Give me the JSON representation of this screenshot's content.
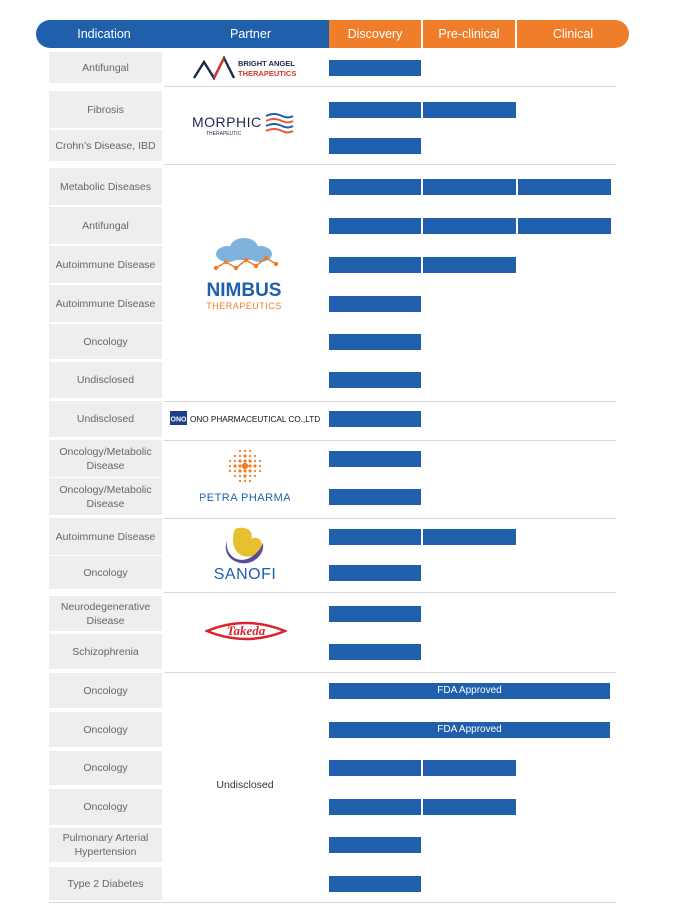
{
  "header": {
    "indication": "Indication",
    "partner": "Partner",
    "discovery": "Discovery",
    "preclinical": "Pre-clinical",
    "clinical": "Clinical"
  },
  "partners": {
    "bright_angel": {
      "line1": "BRIGHT ANGEL",
      "line2": "THERAPEUTICS"
    },
    "morphic": {
      "name": "MORPHIC",
      "sub": "THERAPEUTIC"
    },
    "nimbus": {
      "name": "NIMBUS",
      "sub": "THERAPEUTICS"
    },
    "ono": {
      "mark": "ONO",
      "name": "ONO PHARMACEUTICAL CO.,LTD."
    },
    "petra": {
      "name": "PETRA PHARMA"
    },
    "sanofi": {
      "name": "SANOFI"
    },
    "takeda": {
      "name": "Takeda"
    },
    "undisclosed": {
      "name": "Undisclosed"
    }
  },
  "colors": {
    "header_blue": "#1f5fac",
    "header_orange": "#ef7d2a",
    "bar": "#1f5fac",
    "indication_bg": "#eceef0"
  },
  "chart_data": {
    "type": "table",
    "phases": [
      "Discovery",
      "Pre-clinical",
      "Clinical"
    ],
    "rows": [
      {
        "indication": "Antifungal",
        "stage": 1
      },
      {
        "indication": "Fibrosis",
        "stage": 2
      },
      {
        "indication": "Crohn’s Disease, IBD",
        "stage": 1
      },
      {
        "indication": "Metabolic Diseases",
        "stage": 3
      },
      {
        "indication": "Antifungal",
        "stage": 3
      },
      {
        "indication": "Autoimmune Disease",
        "stage": 2
      },
      {
        "indication": "Autoimmune Disease",
        "stage": 1
      },
      {
        "indication": "Oncology",
        "stage": 1
      },
      {
        "indication": "Undisclosed",
        "stage": 1
      },
      {
        "indication": "Undisclosed",
        "stage": 1
      },
      {
        "indication": "Oncology/Metabolic Disease",
        "stage": 1
      },
      {
        "indication": "Oncology/Metabolic Disease",
        "stage": 1
      },
      {
        "indication": "Autoimmune Disease",
        "stage": 2
      },
      {
        "indication": "Oncology",
        "stage": 1
      },
      {
        "indication": "Neurodegenerative Disease",
        "stage": 1
      },
      {
        "indication": "Schizophrenia",
        "stage": 1
      },
      {
        "indication": "Oncology",
        "stage": 3,
        "label": "FDA Approved"
      },
      {
        "indication": "Oncology",
        "stage": 3,
        "label": "FDA Approved"
      },
      {
        "indication": "Oncology",
        "stage": 2
      },
      {
        "indication": "Oncology",
        "stage": 2
      },
      {
        "indication": "Pulmonary Arterial Hypertension",
        "stage": 1
      },
      {
        "indication": "Type 2 Diabetes",
        "stage": 1
      }
    ]
  }
}
